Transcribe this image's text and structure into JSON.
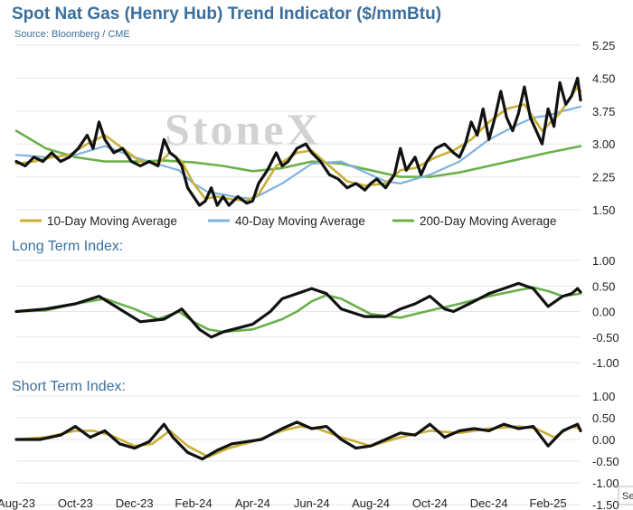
{
  "header": {
    "title": "Spot Nat Gas (Henry Hub) Trend Indicator ($/mmBtu)",
    "source": "Source: Bloomberg / CME",
    "watermark": "StoneX"
  },
  "badge": {
    "label": "Se"
  },
  "colors": {
    "price": "#111111",
    "ma10": "#c9b037",
    "ma40": "#7fb2dd",
    "ma200": "#6bb04b",
    "title": "#3a6f9c"
  },
  "chart_data": [
    {
      "type": "line",
      "ylim": [
        1.5,
        5.25
      ],
      "yticks": [
        "1.50",
        "2.25",
        "3.00",
        "3.75",
        "4.50",
        "5.25"
      ],
      "x_start": "Aug-23",
      "x_end": "Feb-25",
      "xticks": [
        "Aug-23",
        "Oct-23",
        "Dec-23",
        "Feb-24",
        "Apr-24",
        "Jun-24",
        "Aug-24",
        "Oct-24",
        "Dec-24",
        "Feb-25"
      ],
      "legend": [
        "10-Day Moving Average",
        "40-Day Moving Average",
        "200-Day Moving Average"
      ],
      "series": [
        {
          "key": "price",
          "x": [
            0,
            0.3,
            0.6,
            0.9,
            1.2,
            1.5,
            1.8,
            2.1,
            2.4,
            2.6,
            2.8,
            3.0,
            3.3,
            3.6,
            3.9,
            4.2,
            4.5,
            4.8,
            5.0,
            5.2,
            5.4,
            5.6,
            5.8,
            6.0,
            6.2,
            6.4,
            6.6,
            6.8,
            7.0,
            7.2,
            7.5,
            7.8,
            8.0,
            8.2,
            8.5,
            8.8,
            9.0,
            9.2,
            9.5,
            9.8,
            10.0,
            10.3,
            10.6,
            10.9,
            11.2,
            11.5,
            11.8,
            12.0,
            12.2,
            12.5,
            12.8,
            13.0,
            13.2,
            13.5,
            13.7,
            13.9,
            14.2,
            14.5,
            14.8,
            15.0,
            15.2,
            15.4,
            15.6,
            15.8,
            16.0,
            16.2,
            16.4,
            16.6,
            16.8,
            17.0,
            17.2,
            17.4,
            17.6,
            17.8,
            18.0,
            18.2,
            18.4,
            18.6,
            18.8,
            19.0,
            19.1
          ],
          "values": [
            2.6,
            2.5,
            2.7,
            2.6,
            2.8,
            2.6,
            2.7,
            2.9,
            3.2,
            2.9,
            3.5,
            3.1,
            2.8,
            2.9,
            2.6,
            2.5,
            2.6,
            2.5,
            3.1,
            2.8,
            2.7,
            2.5,
            2.0,
            1.8,
            1.6,
            1.7,
            2.0,
            1.6,
            1.8,
            1.6,
            1.8,
            1.65,
            1.7,
            2.1,
            2.4,
            2.8,
            2.5,
            2.6,
            2.9,
            3.0,
            2.8,
            2.6,
            2.3,
            2.2,
            2.0,
            2.1,
            1.95,
            2.1,
            2.2,
            2.0,
            2.3,
            2.9,
            2.4,
            2.7,
            2.3,
            2.6,
            2.9,
            3.0,
            2.8,
            2.7,
            3.0,
            3.5,
            3.2,
            3.8,
            3.1,
            3.6,
            4.2,
            3.6,
            3.3,
            3.7,
            4.3,
            3.6,
            3.3,
            3.0,
            3.8,
            3.4,
            4.4,
            3.9,
            4.1,
            4.5,
            4.0
          ]
        },
        {
          "key": "ma10",
          "x": [
            0,
            0.6,
            1.2,
            1.8,
            2.4,
            3.0,
            3.6,
            4.2,
            4.8,
            5.2,
            5.6,
            6.0,
            6.4,
            6.8,
            7.2,
            7.8,
            8.2,
            8.8,
            9.5,
            10.0,
            10.6,
            11.2,
            11.8,
            12.5,
            13.0,
            13.5,
            14.2,
            14.8,
            15.4,
            16.0,
            16.6,
            17.2,
            17.8,
            18.4,
            19.0,
            19.1
          ],
          "values": [
            2.55,
            2.6,
            2.7,
            2.75,
            3.0,
            3.2,
            2.9,
            2.6,
            2.55,
            2.8,
            2.6,
            2.1,
            1.75,
            1.8,
            1.75,
            1.7,
            1.85,
            2.5,
            2.8,
            2.85,
            2.5,
            2.15,
            2.05,
            2.1,
            2.4,
            2.45,
            2.7,
            2.85,
            3.1,
            3.5,
            3.8,
            3.9,
            3.3,
            3.7,
            4.3,
            4.2
          ]
        },
        {
          "key": "ma40",
          "x": [
            0,
            1.0,
            2.0,
            3.0,
            4.0,
            5.0,
            5.5,
            6.0,
            6.5,
            7.0,
            7.5,
            8.0,
            9.0,
            10.0,
            11.0,
            12.0,
            12.5,
            13.0,
            14.0,
            15.0,
            16.0,
            17.0,
            17.5,
            18.0,
            18.5,
            19.1
          ],
          "values": [
            2.75,
            2.7,
            2.75,
            2.95,
            2.7,
            2.5,
            2.4,
            2.1,
            1.9,
            1.85,
            1.78,
            1.75,
            2.1,
            2.55,
            2.6,
            2.3,
            2.15,
            2.1,
            2.3,
            2.6,
            3.1,
            3.45,
            3.6,
            3.65,
            3.75,
            3.85
          ]
        },
        {
          "key": "ma200",
          "x": [
            0,
            1.0,
            2.0,
            3.0,
            4.0,
            5.0,
            6.0,
            7.0,
            8.0,
            9.0,
            10.0,
            11.0,
            12.0,
            13.0,
            14.0,
            15.0,
            16.0,
            17.0,
            18.0,
            19.1
          ],
          "values": [
            3.3,
            2.9,
            2.7,
            2.6,
            2.6,
            2.62,
            2.58,
            2.5,
            2.38,
            2.45,
            2.6,
            2.55,
            2.4,
            2.25,
            2.25,
            2.35,
            2.5,
            2.65,
            2.8,
            2.95
          ]
        }
      ]
    },
    {
      "type": "line",
      "title": "Long Term Index:",
      "ylim": [
        -1.0,
        1.0
      ],
      "yticks": [
        "1.00",
        "0.50",
        "0.00",
        "-0.50",
        "-1.00"
      ],
      "series": [
        {
          "key": "price",
          "x": [
            0,
            1.0,
            2.0,
            2.8,
            3.5,
            4.2,
            5.0,
            5.6,
            6.2,
            6.6,
            7.0,
            8.0,
            8.6,
            9.0,
            9.5,
            10.0,
            10.5,
            11.0,
            11.8,
            12.5,
            13.0,
            13.5,
            14.0,
            14.5,
            14.8,
            15.5,
            16.0,
            16.5,
            17.0,
            17.5,
            18.0,
            18.5,
            18.8,
            19.0,
            19.1
          ],
          "values": [
            0.0,
            0.05,
            0.15,
            0.3,
            0.05,
            -0.2,
            -0.15,
            0.05,
            -0.35,
            -0.5,
            -0.4,
            -0.25,
            0.0,
            0.25,
            0.35,
            0.45,
            0.35,
            0.05,
            -0.1,
            -0.1,
            0.05,
            0.15,
            0.3,
            0.05,
            0.0,
            0.2,
            0.35,
            0.45,
            0.55,
            0.45,
            0.1,
            0.3,
            0.35,
            0.45,
            0.38
          ]
        },
        {
          "key": "ma200",
          "x": [
            0,
            1.0,
            2.0,
            3.0,
            4.0,
            4.8,
            5.5,
            6.0,
            6.5,
            7.0,
            8.0,
            9.0,
            9.5,
            10.0,
            10.5,
            11.0,
            12.0,
            13.0,
            14.0,
            15.0,
            16.0,
            17.0,
            17.5,
            18.0,
            18.5,
            19.1
          ],
          "values": [
            0.0,
            0.02,
            0.15,
            0.25,
            0.05,
            -0.15,
            0.0,
            -0.2,
            -0.35,
            -0.4,
            -0.35,
            -0.15,
            0.0,
            0.2,
            0.32,
            0.25,
            -0.05,
            -0.12,
            0.02,
            0.15,
            0.3,
            0.42,
            0.47,
            0.4,
            0.3,
            0.35
          ]
        }
      ]
    },
    {
      "type": "line",
      "title": "Short Term Index:",
      "ylim": [
        -1.5,
        1.0
      ],
      "yticks": [
        "1.00",
        "0.50",
        "0.00",
        "-0.50",
        "-1.00",
        "-1.50"
      ],
      "series": [
        {
          "key": "price",
          "x": [
            0,
            0.8,
            1.5,
            2.0,
            2.5,
            3.0,
            3.5,
            4.0,
            4.5,
            5.0,
            5.3,
            5.8,
            6.3,
            6.8,
            7.3,
            7.8,
            8.3,
            9.0,
            9.5,
            10.0,
            10.5,
            11.0,
            11.5,
            12.0,
            12.5,
            13.0,
            13.5,
            14.0,
            14.5,
            15.0,
            15.5,
            16.0,
            16.5,
            17.0,
            17.5,
            18.0,
            18.5,
            19.0,
            19.1
          ],
          "values": [
            0.0,
            0.0,
            0.1,
            0.3,
            0.05,
            0.2,
            -0.1,
            -0.2,
            -0.05,
            0.35,
            0.05,
            -0.3,
            -0.45,
            -0.25,
            -0.1,
            -0.05,
            0.0,
            0.25,
            0.4,
            0.25,
            0.3,
            0.0,
            -0.2,
            -0.15,
            0.0,
            0.15,
            0.1,
            0.35,
            0.05,
            0.2,
            0.25,
            0.2,
            0.35,
            0.25,
            0.3,
            -0.15,
            0.2,
            0.35,
            0.2
          ]
        },
        {
          "key": "ma10",
          "x": [
            0,
            1.0,
            2.0,
            2.6,
            3.2,
            4.0,
            4.6,
            5.2,
            5.8,
            6.5,
            7.2,
            8.0,
            9.0,
            9.6,
            10.2,
            11.0,
            12.0,
            13.0,
            14.0,
            15.0,
            16.0,
            17.0,
            17.6,
            18.2,
            18.8,
            19.1
          ],
          "values": [
            0.0,
            0.05,
            0.2,
            0.2,
            0.1,
            -0.15,
            -0.1,
            0.2,
            -0.15,
            -0.4,
            -0.2,
            -0.05,
            0.2,
            0.3,
            0.25,
            0.05,
            -0.15,
            0.05,
            0.2,
            0.15,
            0.25,
            0.3,
            0.25,
            0.05,
            0.3,
            0.25
          ]
        }
      ]
    }
  ]
}
